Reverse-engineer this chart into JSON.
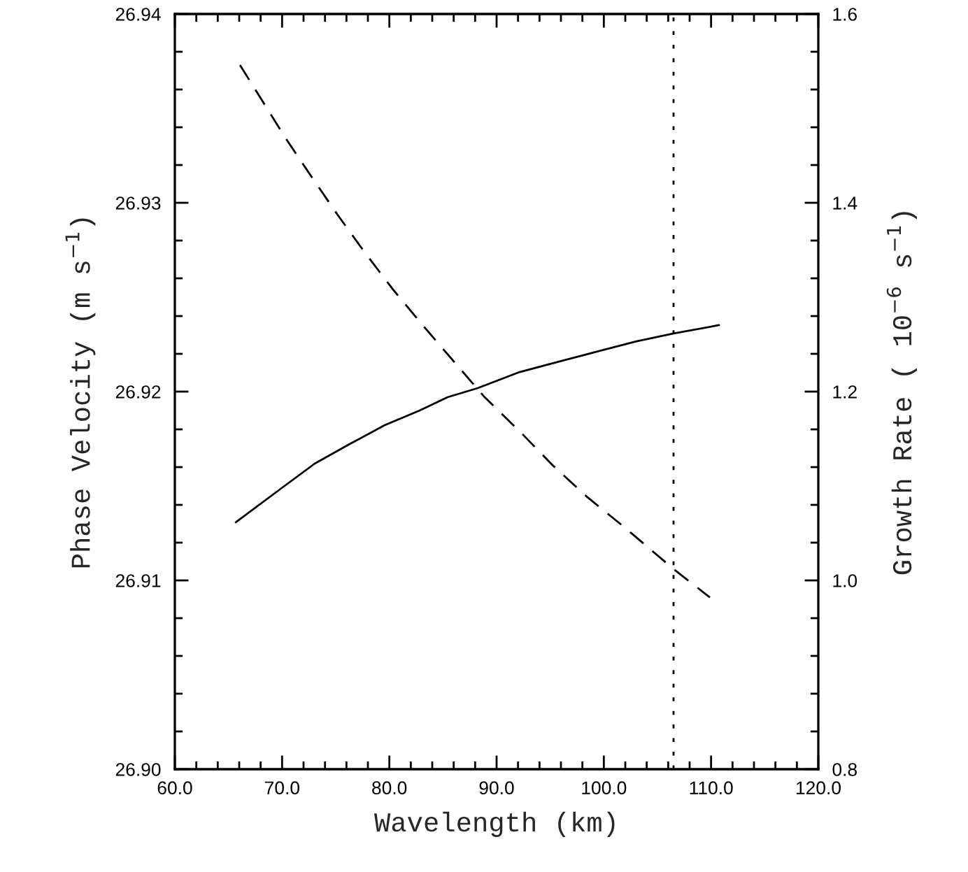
{
  "chart_data": {
    "type": "line",
    "xlabel": "Wavelength (km)",
    "ylabel": "Phase Velocity (m s$^{−1}$)",
    "y2label": "Growth Rate ( 10$^{−6}$ s$^{−1}$)",
    "xlim": [
      60,
      120
    ],
    "ylim": [
      26.9,
      26.94
    ],
    "y2lim": [
      0.8,
      1.6
    ],
    "xticks": [
      {
        "value": 60,
        "label": "60.0"
      },
      {
        "value": 62,
        "label": null
      },
      {
        "value": 64,
        "label": null
      },
      {
        "value": 66,
        "label": null
      },
      {
        "value": 68,
        "label": null
      },
      {
        "value": 70,
        "label": "70.0"
      },
      {
        "value": 72,
        "label": null
      },
      {
        "value": 74,
        "label": null
      },
      {
        "value": 76,
        "label": null
      },
      {
        "value": 78,
        "label": null
      },
      {
        "value": 80,
        "label": "80.0"
      },
      {
        "value": 82,
        "label": null
      },
      {
        "value": 84,
        "label": null
      },
      {
        "value": 86,
        "label": null
      },
      {
        "value": 88,
        "label": null
      },
      {
        "value": 90,
        "label": "90.0"
      },
      {
        "value": 92,
        "label": null
      },
      {
        "value": 94,
        "label": null
      },
      {
        "value": 96,
        "label": null
      },
      {
        "value": 98,
        "label": null
      },
      {
        "value": 100,
        "label": "100.0"
      },
      {
        "value": 102,
        "label": null
      },
      {
        "value": 104,
        "label": null
      },
      {
        "value": 106,
        "label": null
      },
      {
        "value": 108,
        "label": null
      },
      {
        "value": 110,
        "label": "110.0"
      },
      {
        "value": 112,
        "label": null
      },
      {
        "value": 114,
        "label": null
      },
      {
        "value": 116,
        "label": null
      },
      {
        "value": 118,
        "label": null
      },
      {
        "value": 120,
        "label": "120.0"
      }
    ],
    "yticks": [
      {
        "value": 26.9,
        "label": "26.90"
      },
      {
        "value": 26.902,
        "label": null
      },
      {
        "value": 26.904,
        "label": null
      },
      {
        "value": 26.906,
        "label": null
      },
      {
        "value": 26.908,
        "label": null
      },
      {
        "value": 26.91,
        "label": "26.91"
      },
      {
        "value": 26.912,
        "label": null
      },
      {
        "value": 26.914,
        "label": null
      },
      {
        "value": 26.916,
        "label": null
      },
      {
        "value": 26.918,
        "label": null
      },
      {
        "value": 26.92,
        "label": "26.92"
      },
      {
        "value": 26.922,
        "label": null
      },
      {
        "value": 26.924,
        "label": null
      },
      {
        "value": 26.926,
        "label": null
      },
      {
        "value": 26.928,
        "label": null
      },
      {
        "value": 26.93,
        "label": "26.93"
      },
      {
        "value": 26.932,
        "label": null
      },
      {
        "value": 26.934,
        "label": null
      },
      {
        "value": 26.936,
        "label": null
      },
      {
        "value": 26.938,
        "label": null
      },
      {
        "value": 26.94,
        "label": "26.94"
      }
    ],
    "y2ticks": [
      {
        "value": 0.8,
        "label": "0.8"
      },
      {
        "value": 0.84,
        "label": null
      },
      {
        "value": 0.88,
        "label": null
      },
      {
        "value": 0.92,
        "label": null
      },
      {
        "value": 0.96,
        "label": null
      },
      {
        "value": 1.0,
        "label": "1.0"
      },
      {
        "value": 1.04,
        "label": null
      },
      {
        "value": 1.08,
        "label": null
      },
      {
        "value": 1.12,
        "label": null
      },
      {
        "value": 1.16,
        "label": null
      },
      {
        "value": 1.2,
        "label": "1.2"
      },
      {
        "value": 1.24,
        "label": null
      },
      {
        "value": 1.28,
        "label": null
      },
      {
        "value": 1.32,
        "label": null
      },
      {
        "value": 1.36,
        "label": null
      },
      {
        "value": 1.4,
        "label": "1.4"
      },
      {
        "value": 1.44,
        "label": null
      },
      {
        "value": 1.48,
        "label": null
      },
      {
        "value": 1.52,
        "label": null
      },
      {
        "value": 1.56,
        "label": null
      },
      {
        "value": 1.6,
        "label": "1.6"
      }
    ],
    "series": [
      {
        "color": "#000000",
        "line_style": "dashed",
        "x": [
          66.07,
          70.24,
          72.72,
          75.13,
          77.67,
          80.35,
          83.28,
          88.89,
          92.15,
          95.22,
          98.48,
          101.74,
          106.5,
          109.89
        ],
        "values": [
          26.9373,
          26.9335,
          26.9314,
          26.9294,
          26.9274,
          26.9254,
          26.9234,
          26.9197,
          26.9179,
          26.9161,
          26.9144,
          26.9129,
          26.9106,
          26.9091
        ]
      },
      {
        "color": "#000000",
        "line_style": "solid",
        "axis": "y2",
        "x": [
          65.68,
          69.78,
          73.04,
          76.3,
          79.57,
          82.83,
          85.43,
          88.24,
          92.15,
          95.87,
          99.59,
          103.04,
          106.5,
          110.74
        ],
        "values": [
          1.0615,
          1.0963,
          1.1237,
          1.1444,
          1.1644,
          1.18,
          1.1941,
          1.2037,
          1.2207,
          1.2319,
          1.243,
          1.2533,
          1.2615,
          1.2704
        ]
      }
    ],
    "ref_lines": [
      {
        "axis": "x",
        "value": 106.5,
        "line_style": "dotted",
        "color": "#000000"
      }
    ],
    "grid": false,
    "legend": false
  }
}
